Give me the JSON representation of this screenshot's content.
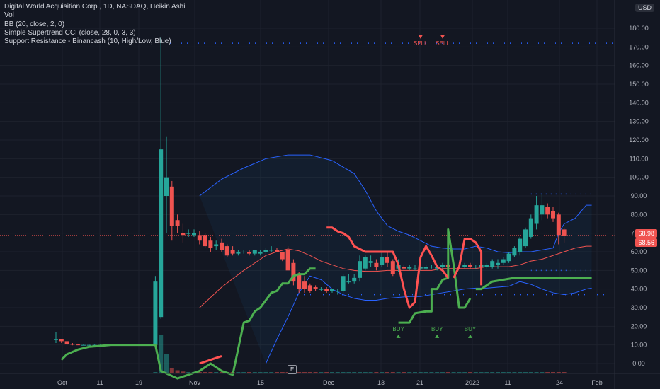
{
  "legend": {
    "title": "Digital World Acquisition Corp., 1D, NASDAQ, Heikin Ashi",
    "vol": "Vol",
    "bb": "BB (20, close, 2, 0)",
    "supertrend": "Simple Supertrend CCI (close, 28, 0, 3, 3)",
    "support_resistance": "Support Resistance - Binancash (10, High/Low, Blue)"
  },
  "currency": "USD",
  "price_tags": {
    "last": "68.98",
    "close": "68.56",
    "last_color": "#f05350",
    "close_color": "#f05350"
  },
  "earnings_marker": "E",
  "chart_data": {
    "type": "candlestick",
    "title": "Digital World Acquisition Corp., 1D, NASDAQ, Heikin Ashi",
    "ylim": [
      -8,
      185
    ],
    "y_ticks": [
      0,
      10,
      20,
      30,
      40,
      50,
      60,
      70,
      80,
      90,
      100,
      110,
      120,
      130,
      140,
      150,
      160,
      170,
      180
    ],
    "y_tick_labels": [
      "0.00",
      "10.00",
      "20.00",
      "30.00",
      "40.00",
      "50.00",
      "60.00",
      "70.00",
      "80.00",
      "90.00",
      "100.00",
      "110.00",
      "120.00",
      "130.00",
      "140.00",
      "150.00",
      "160.00",
      "170.00",
      "180.00"
    ],
    "x_labels": [
      "Oct",
      "11",
      "19",
      "Nov",
      "15",
      "Dec",
      "13",
      "21",
      "2022",
      "11",
      "24",
      "Feb"
    ],
    "candles": [
      {
        "o": 13,
        "h": 17,
        "l": 11,
        "c": 13
      },
      {
        "o": 13,
        "h": 13,
        "l": 11,
        "c": 12
      },
      {
        "o": 12,
        "h": 12,
        "l": 10,
        "c": 10.5
      },
      {
        "o": 10.5,
        "h": 11,
        "l": 9.8,
        "c": 10.2
      },
      {
        "o": 10.2,
        "h": 10.5,
        "l": 9.9,
        "c": 10
      },
      {
        "o": 10,
        "h": 10.3,
        "l": 9.9,
        "c": 10
      },
      {
        "o": 10,
        "h": 10.2,
        "l": 9.9,
        "c": 10
      },
      {
        "o": 10,
        "h": 10.2,
        "l": 9.9,
        "c": 10
      },
      {
        "o": 10,
        "h": 10.2,
        "l": 9.9,
        "c": 10
      },
      {
        "o": 10,
        "h": 10.2,
        "l": 9.9,
        "c": 10
      },
      {
        "o": 10,
        "h": 10.2,
        "l": 9.9,
        "c": 10
      },
      {
        "o": 10,
        "h": 10.2,
        "l": 9.9,
        "c": 10
      },
      {
        "o": 10,
        "h": 10.2,
        "l": 9.9,
        "c": 10
      },
      {
        "o": 10,
        "h": 10.2,
        "l": 9.9,
        "c": 10
      },
      {
        "o": 10,
        "h": 10.2,
        "l": 9.9,
        "c": 10
      },
      {
        "o": 10,
        "h": 10.2,
        "l": 9.9,
        "c": 10
      },
      {
        "o": 10,
        "h": 10.2,
        "l": 9.9,
        "c": 10
      },
      {
        "o": 10,
        "h": 10.2,
        "l": 9.9,
        "c": 10
      },
      {
        "o": 10,
        "h": 47,
        "l": 9.9,
        "c": 44
      },
      {
        "o": 25,
        "h": 175,
        "l": 24,
        "c": 115
      },
      {
        "o": 90,
        "h": 122,
        "l": 70,
        "c": 100
      },
      {
        "o": 95,
        "h": 98,
        "l": 66,
        "c": 74
      },
      {
        "o": 77,
        "h": 80,
        "l": 70,
        "c": 74
      },
      {
        "o": 70,
        "h": 75,
        "l": 65,
        "c": 69
      },
      {
        "o": 70,
        "h": 72,
        "l": 68,
        "c": 70
      },
      {
        "o": 69,
        "h": 72,
        "l": 68,
        "c": 70
      },
      {
        "o": 69,
        "h": 71,
        "l": 64,
        "c": 66
      },
      {
        "o": 69,
        "h": 70,
        "l": 62,
        "c": 63
      },
      {
        "o": 66,
        "h": 68,
        "l": 60,
        "c": 62
      },
      {
        "o": 63,
        "h": 66,
        "l": 61,
        "c": 64
      },
      {
        "o": 65,
        "h": 67,
        "l": 60,
        "c": 61
      },
      {
        "o": 63,
        "h": 64,
        "l": 57,
        "c": 58
      },
      {
        "o": 61,
        "h": 63,
        "l": 58,
        "c": 59
      },
      {
        "o": 59,
        "h": 61,
        "l": 58,
        "c": 60
      },
      {
        "o": 60,
        "h": 61,
        "l": 59,
        "c": 60
      },
      {
        "o": 60,
        "h": 61,
        "l": 58,
        "c": 59
      },
      {
        "o": 59,
        "h": 61,
        "l": 58,
        "c": 61
      },
      {
        "o": 59,
        "h": 61,
        "l": 58,
        "c": 60
      },
      {
        "o": 60,
        "h": 62,
        "l": 59,
        "c": 61
      },
      {
        "o": 61,
        "h": 63,
        "l": 60,
        "c": 61
      },
      {
        "o": 61,
        "h": 62,
        "l": 60,
        "c": 60
      },
      {
        "o": 60,
        "h": 60,
        "l": 55,
        "c": 56
      },
      {
        "o": 61,
        "h": 63,
        "l": 50,
        "c": 50
      },
      {
        "o": 54,
        "h": 56,
        "l": 42,
        "c": 44
      },
      {
        "o": 48,
        "h": 49,
        "l": 38,
        "c": 40
      },
      {
        "o": 44,
        "h": 47,
        "l": 38,
        "c": 40
      },
      {
        "o": 42,
        "h": 43,
        "l": 38,
        "c": 39
      },
      {
        "o": 41,
        "h": 42,
        "l": 39,
        "c": 40
      },
      {
        "o": 40,
        "h": 41,
        "l": 39,
        "c": 40
      },
      {
        "o": 40,
        "h": 41,
        "l": 38,
        "c": 39
      },
      {
        "o": 39,
        "h": 40,
        "l": 38,
        "c": 40
      },
      {
        "o": 39,
        "h": 40,
        "l": 37,
        "c": 39
      },
      {
        "o": 39,
        "h": 48,
        "l": 38,
        "c": 47
      },
      {
        "o": 44,
        "h": 48,
        "l": 43,
        "c": 44
      },
      {
        "o": 44,
        "h": 48,
        "l": 43,
        "c": 46
      },
      {
        "o": 46,
        "h": 58,
        "l": 44,
        "c": 55
      },
      {
        "o": 51,
        "h": 58,
        "l": 50,
        "c": 57
      },
      {
        "o": 54,
        "h": 58,
        "l": 52,
        "c": 55
      },
      {
        "o": 54,
        "h": 56,
        "l": 50,
        "c": 52
      },
      {
        "o": 53,
        "h": 60,
        "l": 52,
        "c": 57
      },
      {
        "o": 57,
        "h": 60,
        "l": 52,
        "c": 54
      },
      {
        "o": 55,
        "h": 56,
        "l": 47,
        "c": 48
      },
      {
        "o": 51,
        "h": 56,
        "l": 49,
        "c": 53
      },
      {
        "o": 52,
        "h": 53,
        "l": 50,
        "c": 51
      },
      {
        "o": 51,
        "h": 53,
        "l": 50,
        "c": 52
      },
      {
        "o": 51,
        "h": 53,
        "l": 50,
        "c": 51
      },
      {
        "o": 51,
        "h": 53,
        "l": 50,
        "c": 52
      },
      {
        "o": 51,
        "h": 53,
        "l": 50,
        "c": 52
      },
      {
        "o": 52,
        "h": 53,
        "l": 51,
        "c": 52
      },
      {
        "o": 51,
        "h": 53,
        "l": 50,
        "c": 52
      },
      {
        "o": 52,
        "h": 54,
        "l": 51,
        "c": 53
      },
      {
        "o": 53,
        "h": 54,
        "l": 51,
        "c": 52
      },
      {
        "o": 52,
        "h": 53,
        "l": 51,
        "c": 52
      },
      {
        "o": 52,
        "h": 53,
        "l": 51,
        "c": 52
      },
      {
        "o": 52,
        "h": 54,
        "l": 51,
        "c": 53
      },
      {
        "o": 53,
        "h": 54,
        "l": 51,
        "c": 52
      },
      {
        "o": 52,
        "h": 53,
        "l": 51,
        "c": 52
      },
      {
        "o": 52,
        "h": 54,
        "l": 51,
        "c": 53
      },
      {
        "o": 52,
        "h": 54,
        "l": 51,
        "c": 53
      },
      {
        "o": 52,
        "h": 56,
        "l": 51,
        "c": 55
      },
      {
        "o": 53,
        "h": 56,
        "l": 51,
        "c": 54
      },
      {
        "o": 54,
        "h": 57,
        "l": 53,
        "c": 56
      },
      {
        "o": 55,
        "h": 60,
        "l": 54,
        "c": 59
      },
      {
        "o": 58,
        "h": 63,
        "l": 57,
        "c": 62
      },
      {
        "o": 60,
        "h": 68,
        "l": 58,
        "c": 67
      },
      {
        "o": 63,
        "h": 73,
        "l": 62,
        "c": 72
      },
      {
        "o": 68,
        "h": 80,
        "l": 67,
        "c": 78
      },
      {
        "o": 75,
        "h": 90,
        "l": 72,
        "c": 85
      },
      {
        "o": 80,
        "h": 91,
        "l": 77,
        "c": 85
      },
      {
        "o": 84,
        "h": 86,
        "l": 78,
        "c": 80
      },
      {
        "o": 82,
        "h": 84,
        "l": 76,
        "c": 78
      },
      {
        "o": 80,
        "h": 81,
        "l": 64,
        "c": 69
      },
      {
        "o": 72,
        "h": 73,
        "l": 65,
        "c": 68.56
      }
    ],
    "bb_upper": [
      [
        26,
        90
      ],
      [
        30,
        99
      ],
      [
        34,
        105
      ],
      [
        38,
        110
      ],
      [
        42,
        112
      ],
      [
        46,
        112
      ],
      [
        50,
        109
      ],
      [
        54,
        102
      ],
      [
        56,
        93
      ],
      [
        58,
        82
      ],
      [
        60,
        74
      ],
      [
        62,
        71
      ],
      [
        64,
        69
      ],
      [
        66,
        66
      ],
      [
        68,
        63
      ],
      [
        70,
        62
      ],
      [
        72,
        61.5
      ],
      [
        74,
        61.5
      ],
      [
        76,
        63
      ],
      [
        78,
        62
      ],
      [
        80,
        60
      ],
      [
        82,
        59.5
      ],
      [
        84,
        60
      ],
      [
        86,
        60
      ],
      [
        88,
        61
      ],
      [
        90,
        62
      ],
      [
        91,
        70
      ],
      [
        92,
        75
      ],
      [
        94,
        78
      ],
      [
        96,
        85
      ],
      [
        97,
        85
      ]
    ],
    "bb_middle": [
      [
        26,
        30
      ],
      [
        30,
        41
      ],
      [
        34,
        50
      ],
      [
        38,
        58
      ],
      [
        40,
        60
      ],
      [
        42,
        61.5
      ],
      [
        44,
        60.5
      ],
      [
        46,
        58
      ],
      [
        48,
        55
      ],
      [
        50,
        53
      ],
      [
        52,
        51
      ],
      [
        54,
        50
      ],
      [
        56,
        49.5
      ],
      [
        58,
        49.5
      ],
      [
        60,
        50
      ],
      [
        62,
        50
      ],
      [
        64,
        50
      ],
      [
        66,
        50
      ],
      [
        68,
        50
      ],
      [
        70,
        51
      ],
      [
        72,
        51
      ],
      [
        74,
        51
      ],
      [
        76,
        51
      ],
      [
        78,
        52
      ],
      [
        80,
        52
      ],
      [
        82,
        52
      ],
      [
        84,
        53
      ],
      [
        86,
        55
      ],
      [
        88,
        56
      ],
      [
        90,
        58
      ],
      [
        92,
        60
      ],
      [
        94,
        62
      ],
      [
        96,
        63
      ],
      [
        97,
        63
      ]
    ],
    "bb_lower": [
      [
        38,
        0
      ],
      [
        40,
        13
      ],
      [
        42,
        25
      ],
      [
        44,
        38
      ],
      [
        46,
        47
      ],
      [
        48,
        45
      ],
      [
        50,
        40
      ],
      [
        52,
        37
      ],
      [
        54,
        35
      ],
      [
        56,
        34
      ],
      [
        58,
        34
      ],
      [
        60,
        35
      ],
      [
        62,
        35.5
      ],
      [
        64,
        36
      ],
      [
        66,
        36
      ],
      [
        68,
        37
      ],
      [
        70,
        38
      ],
      [
        72,
        39
      ],
      [
        74,
        40
      ],
      [
        76,
        40.5
      ],
      [
        78,
        40.5
      ],
      [
        80,
        41
      ],
      [
        82,
        41.5
      ],
      [
        84,
        44
      ],
      [
        86,
        42.5
      ],
      [
        88,
        40
      ],
      [
        90,
        38
      ],
      [
        92,
        37
      ],
      [
        94,
        38
      ],
      [
        96,
        40
      ],
      [
        97,
        40.5
      ]
    ],
    "supertrend_green": [
      [
        [
          1,
          2
        ],
        [
          2,
          5
        ],
        [
          4,
          7.5
        ],
        [
          6,
          9
        ],
        [
          8,
          9.5
        ],
        [
          10,
          10
        ],
        [
          12,
          10
        ],
        [
          14,
          10
        ],
        [
          16,
          10
        ],
        [
          18,
          10
        ],
        [
          19,
          -4
        ],
        [
          22,
          -8
        ],
        [
          26,
          -4
        ],
        [
          28,
          0
        ],
        [
          30,
          -4
        ],
        [
          32,
          -6
        ],
        [
          34,
          22
        ],
        [
          35,
          23
        ],
        [
          36,
          28
        ],
        [
          37,
          30
        ],
        [
          39,
          38
        ],
        [
          40,
          39
        ],
        [
          41,
          43
        ],
        [
          42,
          43
        ],
        [
          43,
          47
        ],
        [
          44,
          48
        ],
        [
          45,
          48
        ],
        [
          46,
          51
        ],
        [
          47,
          51
        ]
      ],
      [
        [
          62,
          22
        ],
        [
          64,
          22
        ],
        [
          65,
          27
        ],
        [
          67,
          28
        ],
        [
          68,
          28
        ],
        [
          68,
          40
        ],
        [
          69,
          40
        ],
        [
          70,
          45
        ],
        [
          71,
          46
        ],
        [
          71,
          72
        ],
        [
          72,
          53
        ],
        [
          73,
          30
        ],
        [
          74,
          30
        ],
        [
          75,
          35
        ]
      ],
      [
        [
          76,
          40
        ],
        [
          77,
          40
        ],
        [
          78,
          42
        ],
        [
          79,
          44
        ],
        [
          81,
          45
        ],
        [
          83,
          46
        ],
        [
          84,
          46
        ],
        [
          86,
          46
        ],
        [
          88,
          46
        ],
        [
          90,
          46
        ],
        [
          92,
          46
        ],
        [
          94,
          46
        ],
        [
          96,
          46
        ],
        [
          97,
          46
        ]
      ]
    ],
    "supertrend_red": [
      [
        [
          26,
          0
        ],
        [
          28,
          2
        ],
        [
          30,
          4
        ]
      ],
      [
        [
          49,
          73
        ],
        [
          50,
          73
        ],
        [
          51,
          71
        ],
        [
          52,
          70
        ],
        [
          53,
          68
        ],
        [
          54,
          63
        ],
        [
          56,
          60
        ],
        [
          58,
          60
        ],
        [
          60,
          60
        ],
        [
          61,
          60
        ],
        [
          62,
          53
        ],
        [
          63,
          40
        ],
        [
          64,
          30
        ],
        [
          65,
          33
        ],
        [
          66,
          57
        ],
        [
          67,
          63
        ],
        [
          68,
          58
        ],
        [
          69,
          52
        ],
        [
          70,
          50
        ],
        [
          71,
          46
        ]
      ],
      [
        [
          72,
          46
        ],
        [
          73,
          52
        ],
        [
          74,
          67
        ],
        [
          75,
          67
        ],
        [
          76,
          65
        ],
        [
          77,
          60
        ],
        [
          77,
          42
        ]
      ]
    ],
    "sr_top": 172,
    "sr_bottom_levels": [
      [
        86,
        38
      ],
      [
        97,
        38
      ]
    ],
    "sr_mid_levels": [
      [
        86,
        50
      ],
      [
        97,
        50
      ]
    ],
    "volume_bars": [
      0,
      0,
      0,
      0,
      0,
      0,
      0,
      0,
      0,
      0,
      0,
      0,
      0,
      0,
      0,
      0,
      0,
      0,
      1,
      60,
      30,
      8,
      5,
      3,
      2,
      2,
      1,
      1,
      1,
      1,
      1,
      1,
      1,
      1,
      1,
      1,
      1,
      1,
      1,
      1,
      1,
      1,
      1,
      1,
      1,
      1,
      1,
      1,
      1,
      1,
      1,
      1,
      1,
      1,
      1,
      1,
      1,
      1,
      1,
      1,
      1,
      1,
      1,
      1,
      1,
      1,
      1,
      1,
      1,
      1,
      1,
      1,
      1,
      1,
      1,
      1,
      1,
      1,
      1,
      1,
      1,
      1,
      1,
      1,
      1,
      1,
      1,
      2,
      2,
      2,
      2,
      2,
      2
    ],
    "signals": [
      {
        "label": "SELL",
        "type": "sell",
        "index": 66,
        "price": 174
      },
      {
        "label": "SELL",
        "type": "sell",
        "index": 70,
        "price": 174
      },
      {
        "label": "BUY",
        "type": "buy",
        "index": 62,
        "price": 16
      },
      {
        "label": "BUY",
        "type": "buy",
        "index": 69,
        "price": 16
      },
      {
        "label": "BUY",
        "type": "buy",
        "index": 75,
        "price": 16
      }
    ],
    "colors": {
      "up": "#26a69a",
      "down": "#ef5350",
      "bb": "#2962ff",
      "bb_mid": "#f05350",
      "supertrend_up": "#4caf50",
      "supertrend_down": "#ff5252",
      "grid": "#1e222d"
    }
  }
}
